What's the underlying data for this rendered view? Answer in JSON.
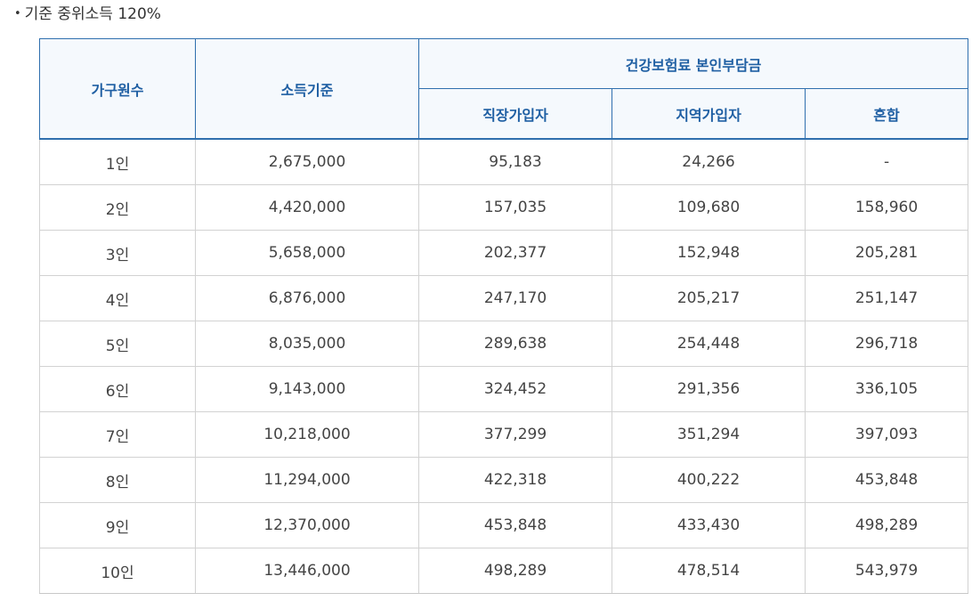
{
  "caption": {
    "bullet": "•",
    "text": "기준 중위소득 120%"
  },
  "table": {
    "headers": {
      "household": "가구원수",
      "income": "소득기준",
      "premium_group": "건강보험료 본인부담금",
      "employee": "직장가입자",
      "regional": "지역가입자",
      "mixed": "혼합"
    },
    "rows": [
      {
        "household": "1인",
        "income": "2,675,000",
        "employee": "95,183",
        "regional": "24,266",
        "mixed": "-"
      },
      {
        "household": "2인",
        "income": "4,420,000",
        "employee": "157,035",
        "regional": "109,680",
        "mixed": "158,960"
      },
      {
        "household": "3인",
        "income": "5,658,000",
        "employee": "202,377",
        "regional": "152,948",
        "mixed": "205,281"
      },
      {
        "household": "4인",
        "income": "6,876,000",
        "employee": "247,170",
        "regional": "205,217",
        "mixed": "251,147"
      },
      {
        "household": "5인",
        "income": "8,035,000",
        "employee": "289,638",
        "regional": "254,448",
        "mixed": "296,718"
      },
      {
        "household": "6인",
        "income": "9,143,000",
        "employee": "324,452",
        "regional": "291,356",
        "mixed": "336,105"
      },
      {
        "household": "7인",
        "income": "10,218,000",
        "employee": "377,299",
        "regional": "351,294",
        "mixed": "397,093"
      },
      {
        "household": "8인",
        "income": "11,294,000",
        "employee": "422,318",
        "regional": "400,222",
        "mixed": "453,848"
      },
      {
        "household": "9인",
        "income": "12,370,000",
        "employee": "453,848",
        "regional": "433,430",
        "mixed": "498,289"
      },
      {
        "household": "10인",
        "income": "13,446,000",
        "employee": "498,289",
        "regional": "478,514",
        "mixed": "543,979"
      }
    ]
  }
}
